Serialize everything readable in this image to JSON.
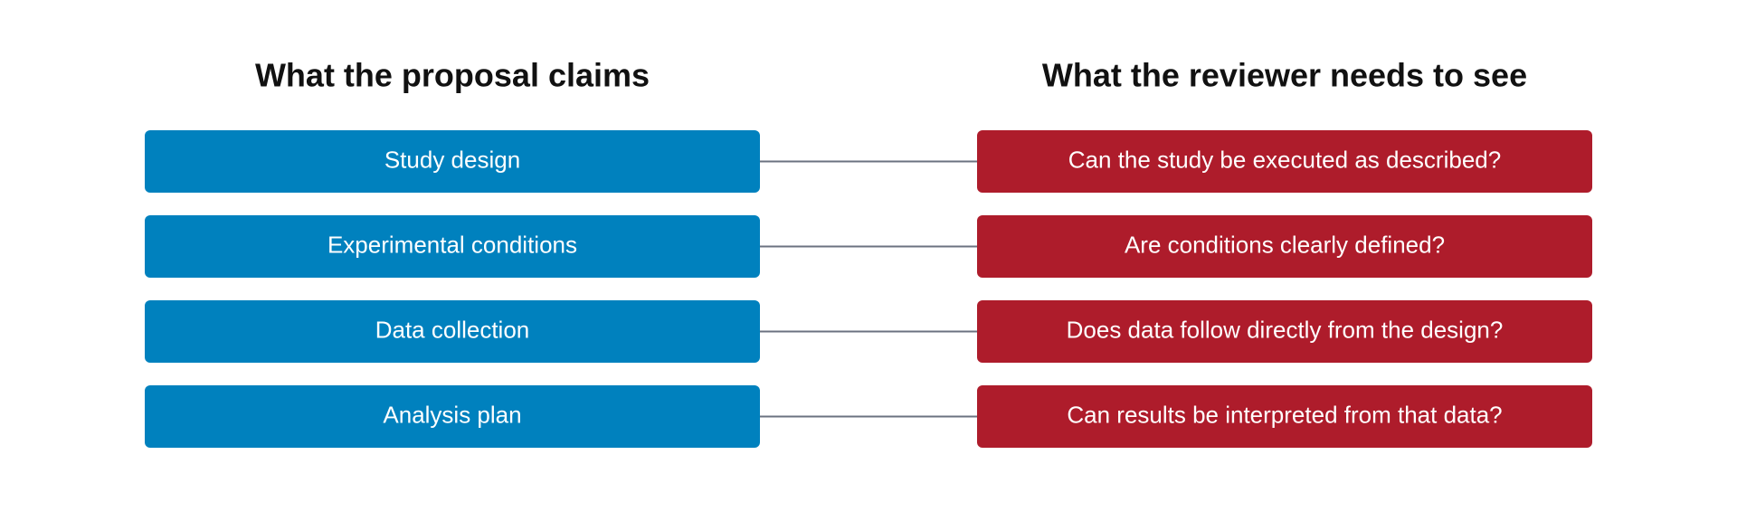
{
  "columns": {
    "left": {
      "title": "What the proposal claims"
    },
    "right": {
      "title": "What the reviewer needs to see"
    }
  },
  "rows": [
    {
      "left": "Study design",
      "right": "Can the study be executed as described?"
    },
    {
      "left": "Experimental conditions",
      "right": "Are conditions clearly defined?"
    },
    {
      "left": "Data collection",
      "right": "Does data follow directly from the design?"
    },
    {
      "left": "Analysis plan",
      "right": "Can results be interpreted from that data?"
    }
  ]
}
